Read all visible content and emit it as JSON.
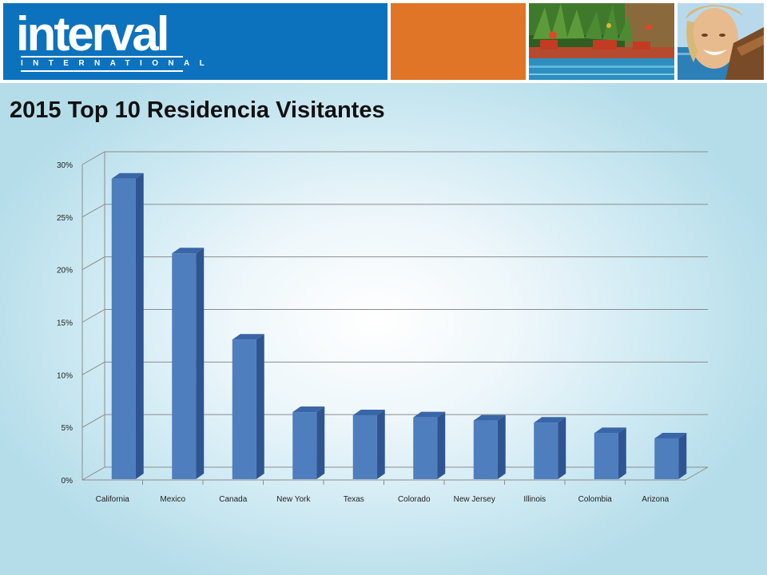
{
  "header": {
    "logo_word": "interval",
    "logo_subtitle": "INTERNATIONAL",
    "brand_blue": "#0c72bd",
    "brand_orange": "#e07427"
  },
  "slide": {
    "title": "2015 Top 10 Residencia Visitantes"
  },
  "chart_data": {
    "type": "bar",
    "style": "3d-column",
    "categories": [
      "California",
      "Mexico",
      "Canada",
      "New York",
      "Texas",
      "Colorado",
      "New Jersey",
      "Illinois",
      "Colombia",
      "Arizona"
    ],
    "values": [
      28.5,
      21.4,
      13.2,
      6.3,
      6.0,
      5.8,
      5.5,
      5.3,
      4.3,
      3.8
    ],
    "unit": "%",
    "ylim": [
      0,
      30
    ],
    "yticks": [
      "0%",
      "5%",
      "10%",
      "15%",
      "20%",
      "25%",
      "30%"
    ],
    "grid": true,
    "legend": "none",
    "bar_color": "#4f7ebe",
    "title": "",
    "xlabel": "",
    "ylabel": ""
  }
}
